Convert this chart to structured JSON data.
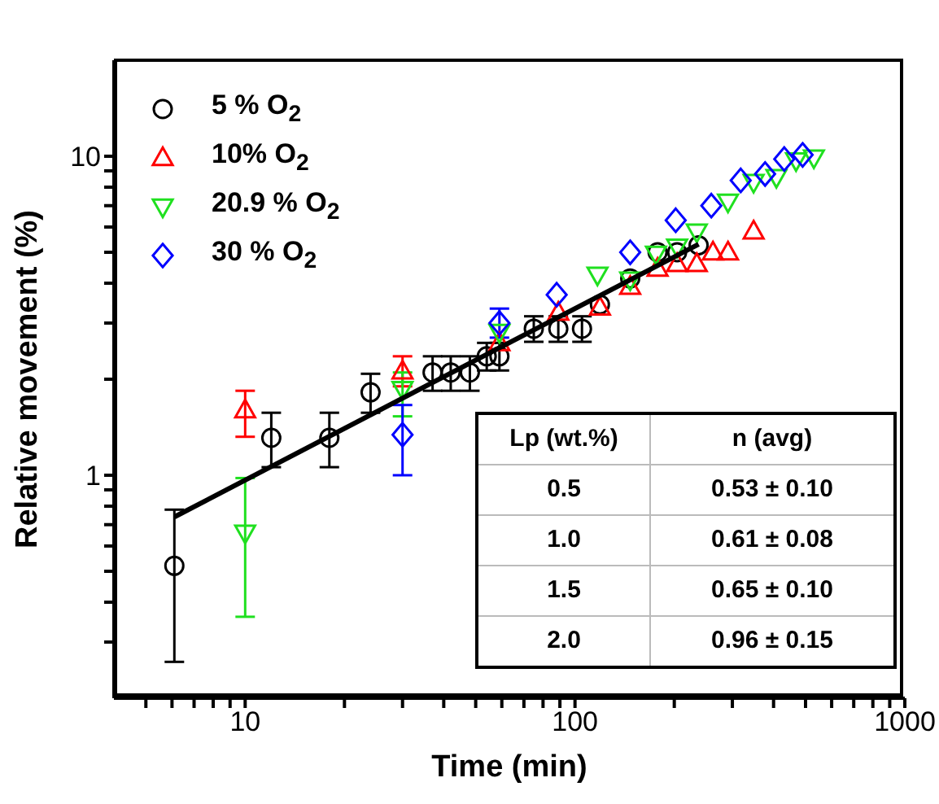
{
  "chart_data": {
    "type": "scatter",
    "xlabel": "Time (min)",
    "ylabel": "Relative movement (%)",
    "log": "xy",
    "legend": "top left",
    "xlim": [
      4,
      1000
    ],
    "xticks": [
      {
        "value": 5,
        "label": null
      },
      {
        "value": 6,
        "label": null
      },
      {
        "value": 7,
        "label": null
      },
      {
        "value": 8,
        "label": null
      },
      {
        "value": 9,
        "label": null
      },
      10,
      {
        "value": 20,
        "label": null
      },
      {
        "value": 30,
        "label": null
      },
      {
        "value": 40,
        "label": null
      },
      {
        "value": 50,
        "label": null
      },
      {
        "value": 60,
        "label": null
      },
      {
        "value": 70,
        "label": null
      },
      {
        "value": 80,
        "label": null
      },
      {
        "value": 90,
        "label": null
      },
      100,
      {
        "value": 200,
        "label": null
      },
      {
        "value": 300,
        "label": null
      },
      {
        "value": 400,
        "label": null
      },
      {
        "value": 500,
        "label": null
      },
      {
        "value": 600,
        "label": null
      },
      {
        "value": 700,
        "label": null
      },
      {
        "value": 800,
        "label": null
      },
      {
        "value": 900,
        "label": null
      },
      1000
    ],
    "ylim": [
      0.2,
      20
    ],
    "yticks": [
      {
        "value": 0.3,
        "label": null
      },
      {
        "value": 0.4,
        "label": null
      },
      {
        "value": 0.5,
        "label": null
      },
      {
        "value": 0.6,
        "label": null
      },
      {
        "value": 0.7,
        "label": null
      },
      {
        "value": 0.8,
        "label": null
      },
      {
        "value": 0.9,
        "label": null
      },
      1,
      {
        "value": 2,
        "label": null
      },
      {
        "value": 3,
        "label": null
      },
      {
        "value": 4,
        "label": null
      },
      {
        "value": 5,
        "label": null
      },
      {
        "value": 6,
        "label": null
      },
      {
        "value": 7,
        "label": null
      },
      {
        "value": 8,
        "label": null
      },
      {
        "value": 9,
        "label": null
      },
      10
    ],
    "annotations": [
      "Lp (wt.%)",
      "n (avg)",
      "0.5",
      "0.53 ± 0.10",
      "1.0",
      "0.61 ± 0.08",
      "1.5",
      "0.65 ± 0.10",
      "2.0",
      "0.96 ± 0.15"
    ],
    "series": [
      {
        "name": "5 % O$_{2}$",
        "color": "#000000",
        "marker": "circle",
        "x": [
          6.1,
          12,
          18,
          24,
          37,
          42,
          48,
          54,
          59,
          75,
          89,
          105,
          119,
          147,
          178,
          204,
          237
        ],
        "values": [
          0.52,
          1.31,
          1.31,
          1.82,
          2.1,
          2.1,
          2.1,
          2.36,
          2.36,
          2.88,
          2.88,
          2.88,
          3.43,
          4.14,
          5.0,
          5.0,
          5.26
        ],
        "errors": [
          [
            0.26,
            0.78
          ],
          [
            1.06,
            1.57
          ],
          [
            1.06,
            1.57
          ],
          [
            1.57,
            2.08
          ],
          [
            1.84,
            2.36
          ],
          [
            1.84,
            2.36
          ],
          [
            1.84,
            2.36
          ],
          [
            2.13,
            2.6
          ],
          [
            2.13,
            2.6
          ],
          [
            2.62,
            3.15
          ],
          [
            2.62,
            3.15
          ],
          [
            2.62,
            3.15
          ],
          null,
          null,
          null,
          null,
          null
        ]
      },
      {
        "name": "10% O$_{2}$",
        "color": "#ff0000",
        "marker": "triangle",
        "x": [
          10,
          30,
          59,
          89,
          119,
          147,
          178,
          204,
          234,
          262,
          291,
          348
        ],
        "values": [
          1.6,
          2.12,
          2.6,
          3.24,
          3.36,
          3.9,
          4.45,
          4.6,
          4.6,
          5.0,
          5.0,
          5.82
        ],
        "errors": [
          [
            1.32,
            1.84
          ],
          [
            1.9,
            2.36
          ],
          null,
          null,
          null,
          null,
          null,
          null,
          null,
          null,
          null,
          null
        ]
      },
      {
        "name": "20.9 % O$_{2}$",
        "color": "#1fe01f",
        "marker": "triangle-down",
        "x": [
          10,
          30,
          59,
          117,
          147,
          176,
          204,
          234,
          291,
          348,
          408,
          468,
          530
        ],
        "values": [
          0.66,
          1.86,
          2.81,
          4.25,
          4.1,
          4.94,
          5.2,
          5.8,
          7.2,
          8.3,
          8.6,
          9.7,
          9.9
        ],
        "errors": [
          [
            0.36,
            0.98
          ],
          [
            1.53,
            2.1
          ],
          null,
          null,
          null,
          null,
          null,
          null,
          null,
          null,
          null,
          null,
          null
        ]
      },
      {
        "name": "30 % O$_{2}$",
        "color": "#0000ff",
        "marker": "diamond",
        "x": [
          30,
          59,
          88,
          147,
          202,
          259,
          318,
          377,
          431,
          490
        ],
        "values": [
          1.34,
          3.0,
          3.68,
          5.0,
          6.3,
          7.0,
          8.4,
          8.8,
          9.8,
          10.1
        ],
        "errors": [
          [
            1.0,
            1.66
          ],
          [
            2.7,
            3.33
          ],
          null,
          null,
          null,
          null,
          null,
          null,
          null,
          null
        ]
      },
      {
        "type": "line",
        "color": "#000000",
        "marker": "none",
        "x": [
          6.1,
          237
        ],
        "values": [
          0.74,
          5.3
        ]
      }
    ]
  }
}
